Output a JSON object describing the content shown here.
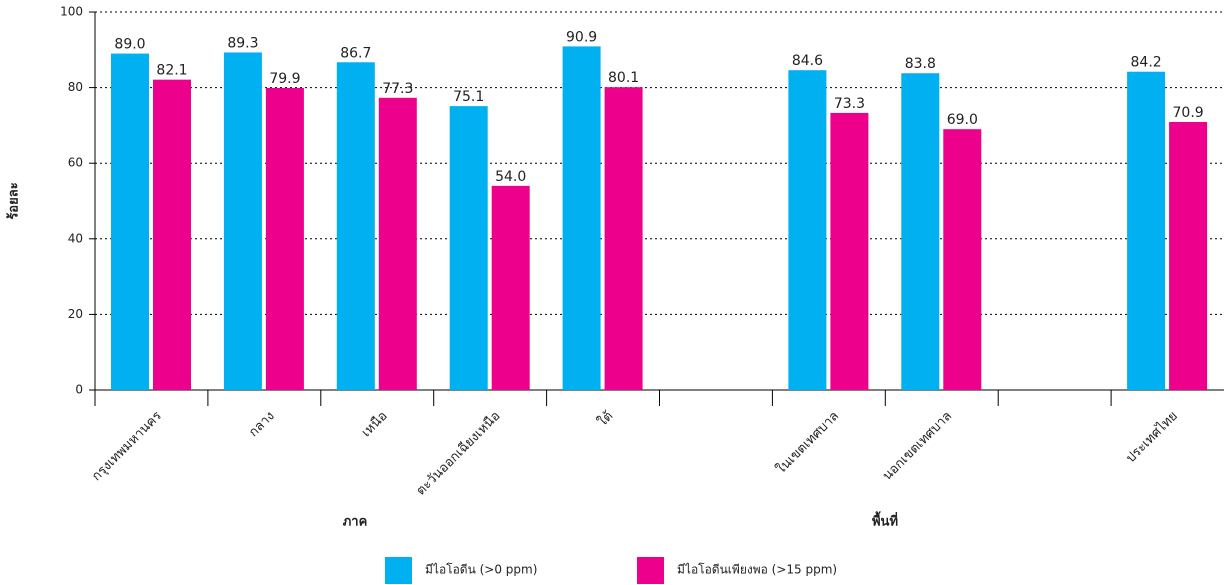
{
  "chart_data": {
    "type": "bar",
    "ylabel": "ร้อยละ",
    "categories": [
      "กรุงเทพมหานคร",
      "กลาง",
      "เหนือ",
      "ตะวันออกเฉียงเหนือ",
      "ใต้",
      null,
      "ในเขตเทศบาล",
      "นอกเขตเทศบาล",
      null,
      "ประเทศไทย"
    ],
    "groups": [
      "ภาค",
      "พื้นที่"
    ],
    "series": [
      {
        "name": "มีไอโอดีน (>0 ppm)",
        "color": "#00b0f0",
        "values": [
          89.0,
          89.3,
          86.7,
          75.1,
          90.9,
          null,
          84.6,
          83.8,
          null,
          84.2
        ],
        "value_labels": [
          "89.0",
          "89.3",
          "86.7",
          "75.1",
          "90.9",
          null,
          "84.6",
          "83.8",
          null,
          "84.2"
        ]
      },
      {
        "name": "มีไอโอดีนเพียงพอ (>15 ppm)",
        "color": "#ec008c",
        "values": [
          82.1,
          79.9,
          77.3,
          54.0,
          80.1,
          null,
          73.3,
          69.0,
          null,
          70.9
        ],
        "value_labels": [
          "82.1",
          "79.9",
          "77.3",
          "54.0",
          "80.1",
          null,
          "73.3",
          "69.0",
          null,
          "70.9"
        ]
      }
    ],
    "ylim": [
      0,
      100
    ],
    "yticks": [
      0,
      20,
      40,
      60,
      80,
      100
    ],
    "grid": true
  }
}
